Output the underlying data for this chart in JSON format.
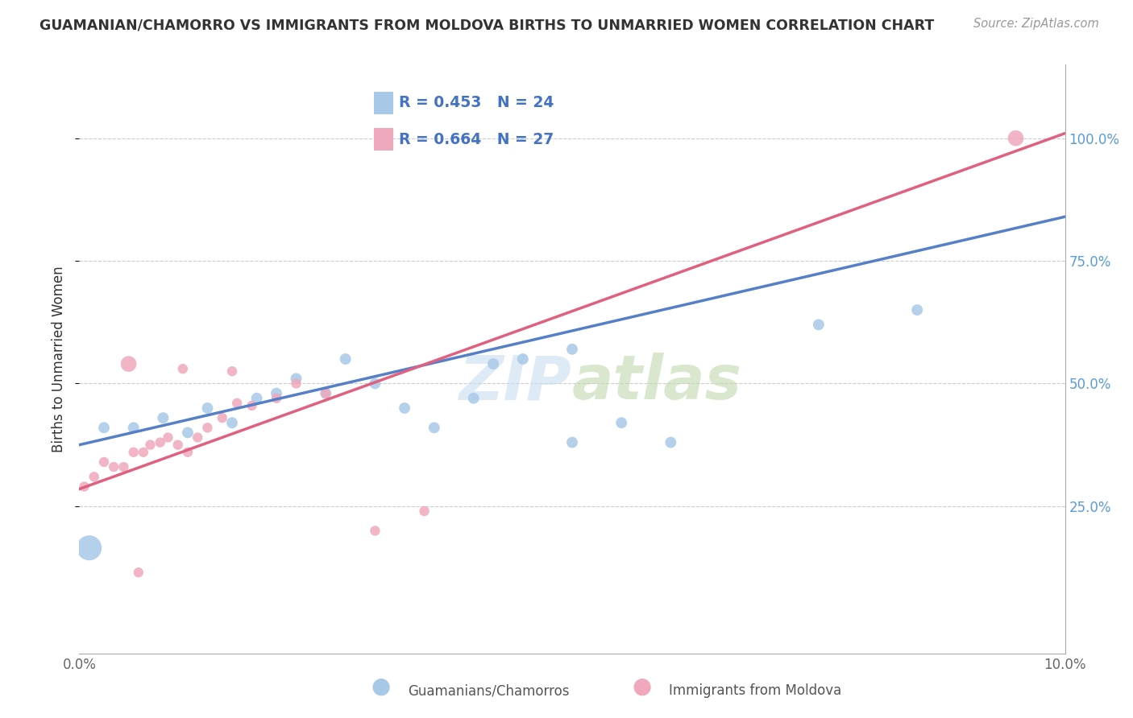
{
  "title": "GUAMANIAN/CHAMORRO VS IMMIGRANTS FROM MOLDOVA BIRTHS TO UNMARRIED WOMEN CORRELATION CHART",
  "source": "Source: ZipAtlas.com",
  "ylabel": "Births to Unmarried Women",
  "xlim": [
    0.0,
    10.0
  ],
  "ylim": [
    -0.05,
    1.15
  ],
  "y_ticks_right": [
    0.25,
    0.5,
    0.75,
    1.0
  ],
  "y_tick_labels_right": [
    "25.0%",
    "50.0%",
    "75.0%",
    "100.0%"
  ],
  "blue_label": "Guamanians/Chamorros",
  "pink_label": "Immigrants from Moldova",
  "blue_R": "R = 0.453",
  "blue_N": "N = 24",
  "pink_R": "R = 0.664",
  "pink_N": "N = 27",
  "blue_color": "#A8C8E8",
  "pink_color": "#F0A8BC",
  "blue_line_color": "#5580C8",
  "pink_line_color": "#E06080",
  "blue_scatter_x": [
    0.25,
    0.55,
    0.85,
    1.1,
    1.3,
    1.55,
    1.8,
    2.0,
    2.2,
    2.5,
    2.7,
    3.0,
    3.3,
    3.6,
    4.0,
    4.2,
    4.5,
    5.0,
    5.0,
    5.5,
    6.0,
    7.5,
    8.5,
    0.1
  ],
  "blue_scatter_y": [
    0.41,
    0.41,
    0.43,
    0.4,
    0.45,
    0.42,
    0.47,
    0.48,
    0.51,
    0.48,
    0.55,
    0.5,
    0.45,
    0.41,
    0.47,
    0.54,
    0.55,
    0.57,
    0.38,
    0.42,
    0.38,
    0.62,
    0.65,
    0.165
  ],
  "blue_scatter_size": [
    100,
    100,
    100,
    100,
    100,
    100,
    100,
    100,
    100,
    100,
    100,
    100,
    100,
    100,
    100,
    100,
    100,
    100,
    100,
    100,
    100,
    100,
    100,
    500
  ],
  "pink_scatter_x": [
    0.05,
    0.15,
    0.25,
    0.35,
    0.45,
    0.55,
    0.65,
    0.72,
    0.82,
    0.9,
    1.0,
    1.1,
    1.2,
    1.3,
    1.45,
    1.6,
    1.75,
    2.0,
    2.2,
    2.5,
    3.0,
    3.5,
    0.5,
    1.05,
    1.55,
    9.5,
    0.6
  ],
  "pink_scatter_y": [
    0.29,
    0.31,
    0.34,
    0.33,
    0.33,
    0.36,
    0.36,
    0.375,
    0.38,
    0.39,
    0.375,
    0.36,
    0.39,
    0.41,
    0.43,
    0.46,
    0.455,
    0.47,
    0.5,
    0.48,
    0.2,
    0.24,
    0.54,
    0.53,
    0.525,
    1.0,
    0.115
  ],
  "pink_scatter_size": [
    80,
    80,
    80,
    80,
    80,
    80,
    80,
    80,
    80,
    80,
    80,
    80,
    80,
    80,
    80,
    80,
    80,
    80,
    80,
    80,
    80,
    80,
    200,
    80,
    80,
    200,
    80
  ],
  "blue_trend_x": [
    0.0,
    10.0
  ],
  "blue_trend_y": [
    0.375,
    0.84
  ],
  "pink_trend_x": [
    0.0,
    10.0
  ],
  "pink_trend_y": [
    0.285,
    1.01
  ],
  "background_color": "#FFFFFF",
  "grid_color": "#CCCCCC"
}
